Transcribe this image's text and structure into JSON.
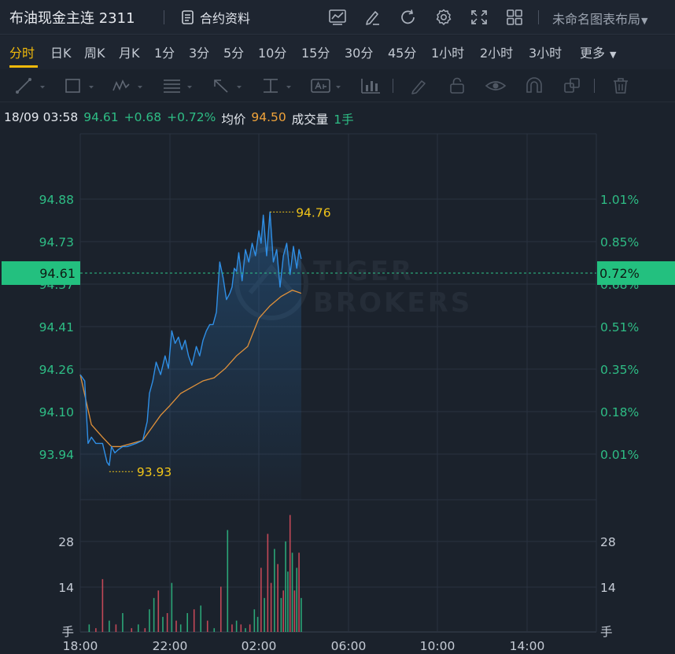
{
  "header": {
    "title": "布油现金主连 2311",
    "contract_label": "合约资料",
    "layout_label": "未命名图表布局"
  },
  "periods": [
    "分时",
    "日K",
    "周K",
    "月K",
    "1分",
    "3分",
    "5分",
    "10分",
    "15分",
    "30分",
    "45分",
    "1小时",
    "2小时",
    "3小时",
    "更多"
  ],
  "active_period": "分时",
  "quote": {
    "datetime": "18/09 03:58",
    "price": "94.61",
    "change": "+0.68",
    "change_pct": "+0.72%",
    "avg_label": "均价",
    "avg": "94.50",
    "volume_label": "成交量",
    "volume": "1手"
  },
  "colors": {
    "up": "#2ebd85",
    "down": "#e04f5f",
    "price_line": "#2f8fe6",
    "avg_line": "#e0913a",
    "annotation": "#f0c419",
    "current_price_box": "#23c07f"
  },
  "chart_data": {
    "type": "line",
    "x_ticks": [
      "18:00",
      "22:00",
      "02:00",
      "06:00",
      "10:00",
      "14:00"
    ],
    "price_ticks": [
      "94.88",
      "94.73",
      "94.57",
      "94.41",
      "94.26",
      "94.10",
      "93.94"
    ],
    "pct_ticks": [
      "1.01%",
      "0.85%",
      "0.68%",
      "0.51%",
      "0.35%",
      "0.18%",
      "0.01%"
    ],
    "volume_ticks": [
      "28",
      "14"
    ],
    "volume_unit": "手",
    "current_price": "94.61",
    "current_pct": "0.72%",
    "high_label": "94.76",
    "low_label": "93.93",
    "watermark": [
      "TIGER",
      "BROKERS"
    ],
    "ylim": [
      93.84,
      95.01
    ],
    "series": [
      {
        "kind": "price",
        "x": [
          18.0,
          18.2,
          18.35,
          18.5,
          18.7,
          19.0,
          19.2,
          19.3,
          19.4,
          19.55,
          19.7,
          19.9,
          20.1,
          20.5,
          20.8,
          21.0,
          21.1,
          21.25,
          21.4,
          21.6,
          21.8,
          21.95,
          22.1,
          22.25,
          22.4,
          22.55,
          22.7,
          22.85,
          23.0,
          23.2,
          23.35,
          23.5,
          23.65,
          23.8,
          23.95,
          24.1,
          24.25,
          24.4,
          24.55,
          24.7,
          24.8,
          24.9,
          25.0,
          25.1,
          25.25,
          25.4,
          25.55,
          25.7,
          25.85,
          26.0,
          26.1,
          26.2,
          26.35,
          26.5,
          26.65,
          26.8,
          26.95,
          27.1,
          27.25,
          27.4,
          27.55,
          27.7,
          27.8,
          27.9
        ],
        "y": [
          94.24,
          94.22,
          94.02,
          94.04,
          94.02,
          94.02,
          93.96,
          93.95,
          94.01,
          93.99,
          94.0,
          94.01,
          94.01,
          94.02,
          94.03,
          94.09,
          94.18,
          94.22,
          94.28,
          94.24,
          94.3,
          94.26,
          94.38,
          94.34,
          94.36,
          94.32,
          94.35,
          94.3,
          94.27,
          94.33,
          94.3,
          94.35,
          94.38,
          94.4,
          94.4,
          94.44,
          94.6,
          94.55,
          94.48,
          94.5,
          94.52,
          94.58,
          94.57,
          94.63,
          94.54,
          94.64,
          94.6,
          94.66,
          94.62,
          94.7,
          94.66,
          94.75,
          94.62,
          94.76,
          94.6,
          94.64,
          94.52,
          94.62,
          94.66,
          94.56,
          94.65,
          94.58,
          94.64,
          94.61
        ]
      },
      {
        "kind": "average",
        "x": [
          18.0,
          18.5,
          19.0,
          19.4,
          19.8,
          20.3,
          20.8,
          21.2,
          21.6,
          22.0,
          22.5,
          23.0,
          23.5,
          24.0,
          24.5,
          25.0,
          25.5,
          26.0,
          26.5,
          27.0,
          27.5,
          27.9
        ],
        "y": [
          94.24,
          94.08,
          94.04,
          94.01,
          94.01,
          94.02,
          94.03,
          94.07,
          94.11,
          94.14,
          94.18,
          94.2,
          94.22,
          94.23,
          94.26,
          94.3,
          94.33,
          94.42,
          94.46,
          94.49,
          94.51,
          94.5
        ]
      }
    ],
    "volume": {
      "x": [
        18.4,
        18.7,
        19.0,
        19.3,
        19.6,
        19.9,
        20.3,
        20.6,
        20.9,
        21.1,
        21.3,
        21.5,
        21.7,
        21.9,
        22.1,
        22.3,
        22.5,
        22.8,
        23.1,
        23.4,
        23.7,
        24.0,
        24.3,
        24.6,
        24.8,
        25.0,
        25.2,
        25.4,
        25.6,
        25.8,
        25.95,
        26.1,
        26.25,
        26.4,
        26.55,
        26.7,
        26.85,
        27.0,
        27.1,
        27.2,
        27.3,
        27.4,
        27.5,
        27.6,
        27.7,
        27.8,
        27.9
      ],
      "values": [
        2,
        1,
        14,
        3,
        2,
        5,
        1,
        2,
        1,
        6,
        9,
        11,
        4,
        5,
        13,
        3,
        2,
        5,
        6,
        7,
        3,
        1,
        12,
        27,
        2,
        3,
        2,
        1,
        2,
        6,
        4,
        17,
        9,
        26,
        13,
        22,
        18,
        9,
        11,
        24,
        16,
        31,
        21,
        11,
        17,
        21,
        9
      ],
      "up": [
        true,
        false,
        false,
        true,
        false,
        true,
        false,
        true,
        false,
        true,
        true,
        false,
        true,
        false,
        true,
        false,
        true,
        true,
        false,
        true,
        false,
        true,
        false,
        true,
        false,
        true,
        false,
        true,
        false,
        true,
        true,
        false,
        true,
        false,
        false,
        true,
        false,
        true,
        false,
        true,
        true,
        false,
        true,
        false,
        true,
        false,
        true
      ],
      "ylim": [
        0,
        34
      ]
    }
  }
}
